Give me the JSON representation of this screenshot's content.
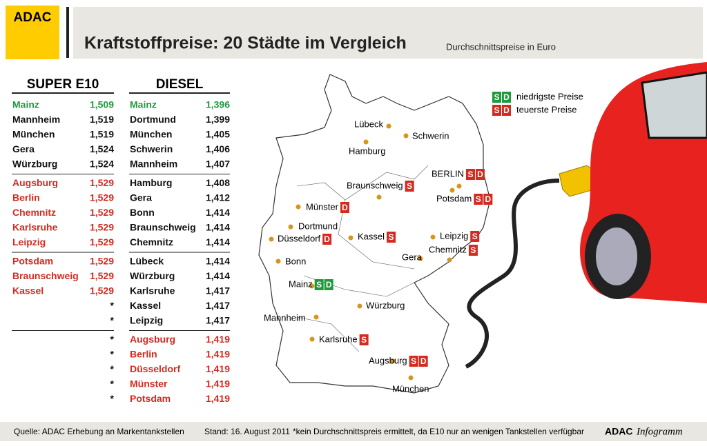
{
  "header": {
    "logo": "ADAC",
    "title": "Kraftstoffpreise: 20 Städte im Vergleich",
    "subtitle": "Durchschnittspreise in Euro"
  },
  "tables": [
    {
      "title": "SUPER E10",
      "groups": [
        [
          {
            "city": "Mainz",
            "price": "1,509",
            "color": "#1e9a3c"
          },
          {
            "city": "Mannheim",
            "price": "1,519"
          },
          {
            "city": "München",
            "price": "1,519"
          },
          {
            "city": "Gera",
            "price": "1,524"
          },
          {
            "city": "Würzburg",
            "price": "1,524"
          }
        ],
        [
          {
            "city": "Augsburg",
            "price": "1,529",
            "color": "#d42a1f"
          },
          {
            "city": "Berlin",
            "price": "1,529",
            "color": "#d42a1f"
          },
          {
            "city": "Chemnitz",
            "price": "1,529",
            "color": "#d42a1f"
          },
          {
            "city": "Karlsruhe",
            "price": "1,529",
            "color": "#d42a1f"
          },
          {
            "city": "Leipzig",
            "price": "1,529",
            "color": "#d42a1f"
          }
        ],
        [
          {
            "city": "Potsdam",
            "price": "1,529",
            "color": "#d42a1f"
          },
          {
            "city": "Braunschweig",
            "price": "1,529",
            "color": "#d42a1f"
          },
          {
            "city": "Kassel",
            "price": "1,529",
            "color": "#d42a1f"
          },
          {
            "price": "*"
          },
          {
            "price": "*"
          }
        ],
        [
          {
            "price": "*"
          },
          {
            "price": "*"
          },
          {
            "price": "*"
          },
          {
            "price": "*"
          },
          {
            "price": "*"
          }
        ]
      ]
    },
    {
      "title": "DIESEL",
      "groups": [
        [
          {
            "city": "Mainz",
            "price": "1,396",
            "color": "#1e9a3c"
          },
          {
            "city": "Dortmund",
            "price": "1,399"
          },
          {
            "city": "München",
            "price": "1,405"
          },
          {
            "city": "Schwerin",
            "price": "1,406"
          },
          {
            "city": "Mannheim",
            "price": "1,407"
          }
        ],
        [
          {
            "city": "Hamburg",
            "price": "1,408"
          },
          {
            "city": "Gera",
            "price": "1,412"
          },
          {
            "city": "Bonn",
            "price": "1,414"
          },
          {
            "city": "Braunschweig",
            "price": "1,414"
          },
          {
            "city": "Chemnitz",
            "price": "1,414"
          }
        ],
        [
          {
            "city": "Lübeck",
            "price": "1,414"
          },
          {
            "city": "Würzburg",
            "price": "1,414"
          },
          {
            "city": "Karlsruhe",
            "price": "1,417"
          },
          {
            "city": "Kassel",
            "price": "1,417"
          },
          {
            "city": "Leipzig",
            "price": "1,417"
          }
        ],
        [
          {
            "city": "Augsburg",
            "price": "1,419",
            "color": "#d42a1f"
          },
          {
            "city": "Berlin",
            "price": "1,419",
            "color": "#d42a1f"
          },
          {
            "city": "Düsseldorf",
            "price": "1,419",
            "color": "#d42a1f"
          },
          {
            "city": "Münster",
            "price": "1,419",
            "color": "#d42a1f"
          },
          {
            "city": "Potsdam",
            "price": "1,419",
            "color": "#d42a1f"
          }
        ]
      ]
    }
  ],
  "legend": [
    {
      "badges": [
        "S",
        "D"
      ],
      "badge_color": "#1e9a3c",
      "label": "niedrigste Preise"
    },
    {
      "badges": [
        "S",
        "D"
      ],
      "badge_color": "#d42a1f",
      "label": "teuerste Preise"
    }
  ],
  "map": {
    "cities": [
      {
        "label": "Lübeck"
      },
      {
        "label": "Schwerin"
      },
      {
        "label": "Hamburg"
      },
      {
        "label": "Braunschweig",
        "badges": [
          "S"
        ],
        "badge_color": "#d42a1f"
      },
      {
        "label": "BERLIN",
        "badges": [
          "S",
          "D"
        ],
        "badge_color": "#d42a1f"
      },
      {
        "label": "Potsdam",
        "badges": [
          "S",
          "D"
        ],
        "badge_color": "#d42a1f"
      },
      {
        "label": "Münster",
        "badges": [
          "D"
        ],
        "badge_color": "#d42a1f"
      },
      {
        "label": "Dortmund"
      },
      {
        "label": "Düsseldorf",
        "badges": [
          "D"
        ],
        "badge_color": "#d42a1f"
      },
      {
        "label": "Kassel",
        "badges": [
          "S"
        ],
        "badge_color": "#d42a1f"
      },
      {
        "label": "Leipzig",
        "badges": [
          "S"
        ],
        "badge_color": "#d42a1f"
      },
      {
        "label": "Chemnitz",
        "badges": [
          "S"
        ],
        "badge_color": "#d42a1f"
      },
      {
        "label": "Gera"
      },
      {
        "label": "Bonn"
      },
      {
        "label": "Mainz",
        "badges": [
          "S",
          "D"
        ],
        "badge_color": "#1e9a3c"
      },
      {
        "label": "Würzburg"
      },
      {
        "label": "Mannheim"
      },
      {
        "label": "Karlsruhe",
        "badges": [
          "S"
        ],
        "badge_color": "#d42a1f"
      },
      {
        "label": "Augsburg",
        "badges": [
          "S",
          "D"
        ],
        "badge_color": "#d42a1f"
      },
      {
        "label": "München"
      }
    ]
  },
  "footer": {
    "source": "Quelle: ADAC Erhebung an Markentankstellen",
    "date": "Stand: 16. August 2011",
    "note": "*kein Durchschnittspreis ermittelt, da E10 nur an wenigen Tankstellen verfügbar",
    "brand": "ADAC",
    "brand_suffix": "Infogramm"
  }
}
